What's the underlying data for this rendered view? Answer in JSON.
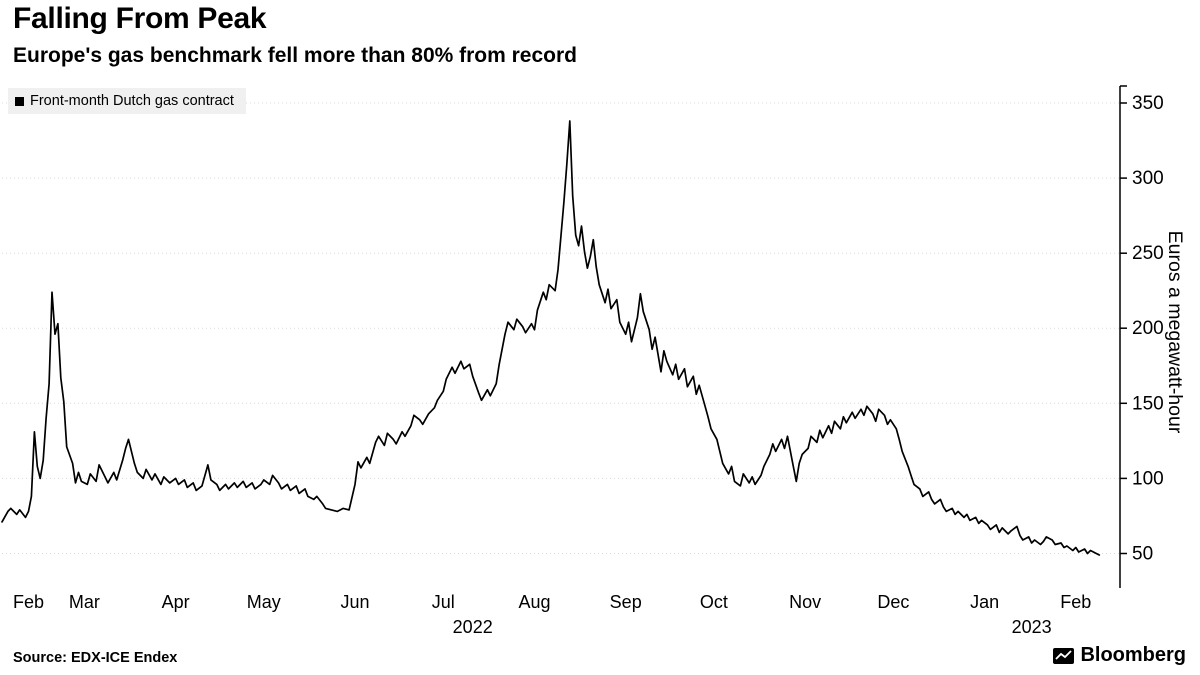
{
  "header": {
    "title": "Falling From Peak",
    "subtitle": "Europe's gas benchmark fell more than 80% from record"
  },
  "legend": {
    "label": "Front-month Dutch gas contract"
  },
  "footer": {
    "source": "Source: EDX-ICE Endex",
    "brand": "Bloomberg"
  },
  "colors": {
    "line": "#000000",
    "grid": "#d9d9d9",
    "axis": "#000000",
    "legend_bg": "#f0f0f0"
  },
  "chart_data": {
    "type": "line",
    "title": "Falling From Peak",
    "subtitle": "Europe's gas benchmark fell more than 80% from record",
    "ylabel": "Euros a megawatt-hour",
    "x_unit": "days since 2022-02-01",
    "x_domain": [
      0,
      378
    ],
    "ylim": [
      27,
      360
    ],
    "y_ticks": [
      50,
      100,
      150,
      200,
      250,
      300,
      350
    ],
    "grid": "horizontal-dotted",
    "axis_side": "right",
    "legend_position": "top-left",
    "month_ticks": [
      {
        "label": "Feb",
        "day": 9
      },
      {
        "label": "Mar",
        "day": 28
      },
      {
        "label": "Apr",
        "day": 59
      },
      {
        "label": "May",
        "day": 89
      },
      {
        "label": "Jun",
        "day": 120
      },
      {
        "label": "Jul",
        "day": 150
      },
      {
        "label": "Aug",
        "day": 181
      },
      {
        "label": "Sep",
        "day": 212
      },
      {
        "label": "Oct",
        "day": 242
      },
      {
        "label": "Nov",
        "day": 273
      },
      {
        "label": "Dec",
        "day": 303
      },
      {
        "label": "Jan",
        "day": 334
      },
      {
        "label": "Feb",
        "day": 365
      }
    ],
    "year_ticks": [
      {
        "label": "2022",
        "day": 160
      },
      {
        "label": "2023",
        "day": 350
      }
    ],
    "series": [
      {
        "name": "Front-month Dutch gas contract",
        "color": "#000000",
        "points": [
          [
            0,
            71
          ],
          [
            2,
            78
          ],
          [
            3,
            80
          ],
          [
            5,
            76
          ],
          [
            6,
            79
          ],
          [
            8,
            74
          ],
          [
            9,
            78
          ],
          [
            10,
            88
          ],
          [
            11,
            131
          ],
          [
            12,
            108
          ],
          [
            13,
            100
          ],
          [
            14,
            112
          ],
          [
            15,
            140
          ],
          [
            16,
            163
          ],
          [
            17,
            224
          ],
          [
            18,
            196
          ],
          [
            19,
            203
          ],
          [
            20,
            167
          ],
          [
            21,
            151
          ],
          [
            22,
            121
          ],
          [
            24,
            110
          ],
          [
            25,
            97
          ],
          [
            26,
            104
          ],
          [
            27,
            98
          ],
          [
            29,
            96
          ],
          [
            30,
            103
          ],
          [
            32,
            98
          ],
          [
            33,
            109
          ],
          [
            35,
            101
          ],
          [
            36,
            97
          ],
          [
            38,
            104
          ],
          [
            39,
            99
          ],
          [
            41,
            112
          ],
          [
            42,
            120
          ],
          [
            43,
            126
          ],
          [
            45,
            110
          ],
          [
            46,
            104
          ],
          [
            48,
            100
          ],
          [
            49,
            106
          ],
          [
            51,
            99
          ],
          [
            52,
            103
          ],
          [
            54,
            96
          ],
          [
            55,
            101
          ],
          [
            57,
            97
          ],
          [
            59,
            100
          ],
          [
            60,
            96
          ],
          [
            62,
            99
          ],
          [
            63,
            94
          ],
          [
            65,
            97
          ],
          [
            66,
            92
          ],
          [
            68,
            95
          ],
          [
            70,
            109
          ],
          [
            71,
            99
          ],
          [
            73,
            96
          ],
          [
            74,
            92
          ],
          [
            76,
            96
          ],
          [
            77,
            93
          ],
          [
            79,
            97
          ],
          [
            80,
            94
          ],
          [
            82,
            98
          ],
          [
            83,
            94
          ],
          [
            85,
            97
          ],
          [
            86,
            93
          ],
          [
            88,
            96
          ],
          [
            89,
            99
          ],
          [
            91,
            96
          ],
          [
            92,
            102
          ],
          [
            94,
            97
          ],
          [
            95,
            93
          ],
          [
            97,
            96
          ],
          [
            98,
            92
          ],
          [
            100,
            95
          ],
          [
            101,
            90
          ],
          [
            103,
            93
          ],
          [
            104,
            88
          ],
          [
            106,
            86
          ],
          [
            107,
            88
          ],
          [
            109,
            83
          ],
          [
            110,
            80
          ],
          [
            112,
            79
          ],
          [
            114,
            78
          ],
          [
            116,
            80
          ],
          [
            118,
            79
          ],
          [
            120,
            96
          ],
          [
            121,
            111
          ],
          [
            122,
            107
          ],
          [
            124,
            114
          ],
          [
            125,
            110
          ],
          [
            127,
            124
          ],
          [
            128,
            128
          ],
          [
            130,
            122
          ],
          [
            131,
            130
          ],
          [
            133,
            126
          ],
          [
            134,
            123
          ],
          [
            136,
            131
          ],
          [
            137,
            128
          ],
          [
            139,
            135
          ],
          [
            140,
            142
          ],
          [
            142,
            139
          ],
          [
            143,
            136
          ],
          [
            145,
            143
          ],
          [
            147,
            147
          ],
          [
            148,
            152
          ],
          [
            150,
            158
          ],
          [
            151,
            166
          ],
          [
            153,
            174
          ],
          [
            154,
            170
          ],
          [
            156,
            178
          ],
          [
            157,
            173
          ],
          [
            159,
            176
          ],
          [
            160,
            168
          ],
          [
            162,
            157
          ],
          [
            163,
            152
          ],
          [
            165,
            159
          ],
          [
            166,
            155
          ],
          [
            168,
            163
          ],
          [
            169,
            176
          ],
          [
            171,
            196
          ],
          [
            172,
            204
          ],
          [
            174,
            199
          ],
          [
            175,
            206
          ],
          [
            177,
            201
          ],
          [
            178,
            197
          ],
          [
            180,
            203
          ],
          [
            181,
            199
          ],
          [
            182,
            212
          ],
          [
            184,
            224
          ],
          [
            185,
            219
          ],
          [
            186,
            229
          ],
          [
            188,
            225
          ],
          [
            189,
            239
          ],
          [
            190,
            261
          ],
          [
            191,
            284
          ],
          [
            192,
            309
          ],
          [
            193,
            338
          ],
          [
            194,
            288
          ],
          [
            195,
            262
          ],
          [
            196,
            255
          ],
          [
            197,
            268
          ],
          [
            198,
            251
          ],
          [
            199,
            240
          ],
          [
            200,
            248
          ],
          [
            201,
            259
          ],
          [
            202,
            241
          ],
          [
            203,
            229
          ],
          [
            205,
            217
          ],
          [
            206,
            226
          ],
          [
            207,
            213
          ],
          [
            209,
            219
          ],
          [
            210,
            204
          ],
          [
            212,
            196
          ],
          [
            213,
            204
          ],
          [
            214,
            191
          ],
          [
            216,
            207
          ],
          [
            217,
            223
          ],
          [
            218,
            211
          ],
          [
            220,
            199
          ],
          [
            221,
            186
          ],
          [
            222,
            194
          ],
          [
            224,
            171
          ],
          [
            225,
            185
          ],
          [
            226,
            178
          ],
          [
            228,
            169
          ],
          [
            229,
            176
          ],
          [
            230,
            166
          ],
          [
            232,
            173
          ],
          [
            233,
            161
          ],
          [
            235,
            168
          ],
          [
            236,
            156
          ],
          [
            237,
            162
          ],
          [
            239,
            148
          ],
          [
            240,
            141
          ],
          [
            241,
            133
          ],
          [
            243,
            126
          ],
          [
            244,
            118
          ],
          [
            245,
            110
          ],
          [
            247,
            103
          ],
          [
            248,
            108
          ],
          [
            249,
            98
          ],
          [
            251,
            95
          ],
          [
            252,
            103
          ],
          [
            254,
            97
          ],
          [
            255,
            101
          ],
          [
            256,
            96
          ],
          [
            258,
            102
          ],
          [
            259,
            108
          ],
          [
            261,
            116
          ],
          [
            262,
            123
          ],
          [
            263,
            118
          ],
          [
            265,
            126
          ],
          [
            266,
            120
          ],
          [
            267,
            128
          ],
          [
            269,
            108
          ],
          [
            270,
            98
          ],
          [
            271,
            110
          ],
          [
            272,
            116
          ],
          [
            274,
            120
          ],
          [
            275,
            128
          ],
          [
            277,
            124
          ],
          [
            278,
            132
          ],
          [
            279,
            127
          ],
          [
            281,
            135
          ],
          [
            282,
            130
          ],
          [
            283,
            138
          ],
          [
            285,
            133
          ],
          [
            286,
            141
          ],
          [
            287,
            137
          ],
          [
            289,
            144
          ],
          [
            290,
            140
          ],
          [
            292,
            146
          ],
          [
            293,
            142
          ],
          [
            294,
            148
          ],
          [
            296,
            143
          ],
          [
            297,
            138
          ],
          [
            298,
            146
          ],
          [
            300,
            142
          ],
          [
            301,
            136
          ],
          [
            302,
            139
          ],
          [
            304,
            133
          ],
          [
            305,
            126
          ],
          [
            306,
            118
          ],
          [
            308,
            108
          ],
          [
            309,
            102
          ],
          [
            310,
            96
          ],
          [
            312,
            93
          ],
          [
            313,
            88
          ],
          [
            315,
            91
          ],
          [
            316,
            86
          ],
          [
            317,
            83
          ],
          [
            319,
            86
          ],
          [
            320,
            81
          ],
          [
            321,
            78
          ],
          [
            323,
            80
          ],
          [
            324,
            76
          ],
          [
            325,
            78
          ],
          [
            327,
            74
          ],
          [
            328,
            76
          ],
          [
            329,
            72
          ],
          [
            331,
            74
          ],
          [
            332,
            70
          ],
          [
            333,
            72
          ],
          [
            335,
            69
          ],
          [
            336,
            66
          ],
          [
            338,
            69
          ],
          [
            339,
            64
          ],
          [
            340,
            67
          ],
          [
            342,
            63
          ],
          [
            343,
            65
          ],
          [
            345,
            68
          ],
          [
            346,
            62
          ],
          [
            347,
            59
          ],
          [
            349,
            61
          ],
          [
            350,
            57
          ],
          [
            351,
            59
          ],
          [
            353,
            56
          ],
          [
            354,
            58
          ],
          [
            355,
            61
          ],
          [
            357,
            59
          ],
          [
            358,
            56
          ],
          [
            360,
            57
          ],
          [
            361,
            54
          ],
          [
            362,
            55
          ],
          [
            364,
            52
          ],
          [
            365,
            54
          ],
          [
            366,
            51
          ],
          [
            368,
            53
          ],
          [
            369,
            50
          ],
          [
            370,
            52
          ],
          [
            372,
            50
          ],
          [
            373,
            49
          ]
        ]
      }
    ]
  }
}
